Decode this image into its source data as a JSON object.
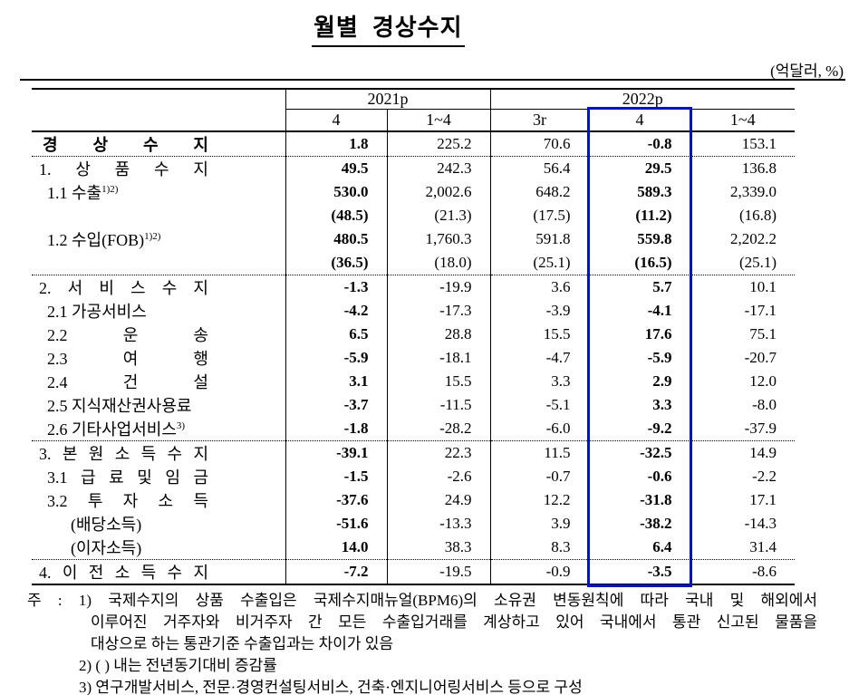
{
  "title": "월별  경상수지",
  "unit_note": "(억달러, %)",
  "accent_color": "#0010e0",
  "table": {
    "group_headers": [
      {
        "label": "2021p",
        "span": 2
      },
      {
        "label": "2022p",
        "span": 3
      }
    ],
    "sub_headers": [
      "4",
      "1~4",
      "3r",
      "4",
      "1~4"
    ],
    "highlighted_subcolumn_index": 3,
    "bold_value_columns": [
      0,
      3
    ],
    "rows": [
      {
        "label": "경 상 수 지",
        "level": 0,
        "bold": true,
        "spread": true,
        "values": [
          "1.8",
          "225.2",
          "70.6",
          "-0.8",
          "153.1"
        ],
        "section_end": true
      },
      {
        "label": "1. 상 품 수 지",
        "level": 1,
        "spread": true,
        "values": [
          "49.5",
          "242.3",
          "56.4",
          "29.5",
          "136.8"
        ]
      },
      {
        "label": "1.1 수출",
        "sup": "1)2)",
        "level": 2,
        "values": [
          "530.0",
          "2,002.6",
          "648.2",
          "589.3",
          "2,339.0"
        ]
      },
      {
        "label": "",
        "level": 2,
        "values": [
          "(48.5)",
          "(21.3)",
          "(17.5)",
          "(11.2)",
          "(16.8)"
        ]
      },
      {
        "label": "1.2 수입(FOB)",
        "sup": "1)2)",
        "level": 2,
        "values": [
          "480.5",
          "1,760.3",
          "591.8",
          "559.8",
          "2,202.2"
        ]
      },
      {
        "label": "",
        "level": 2,
        "values": [
          "(36.5)",
          "(18.0)",
          "(25.1)",
          "(16.5)",
          "(25.1)"
        ],
        "section_end": true
      },
      {
        "label": "2. 서 비 스 수 지",
        "level": 1,
        "spread": true,
        "values": [
          "-1.3",
          "-19.9",
          "3.6",
          "5.7",
          "10.1"
        ]
      },
      {
        "label": "2.1 가공서비스",
        "level": 2,
        "values": [
          "-4.2",
          "-17.3",
          "-3.9",
          "-4.1",
          "-17.1"
        ]
      },
      {
        "label": "2.2 운 송",
        "level": 2,
        "spread": true,
        "values": [
          "6.5",
          "28.8",
          "15.5",
          "17.6",
          "75.1"
        ]
      },
      {
        "label": "2.3 여 행",
        "level": 2,
        "spread": true,
        "values": [
          "-5.9",
          "-18.1",
          "-4.7",
          "-5.9",
          "-20.7"
        ]
      },
      {
        "label": "2.4 건 설",
        "level": 2,
        "spread": true,
        "values": [
          "3.1",
          "15.5",
          "3.3",
          "2.9",
          "12.0"
        ]
      },
      {
        "label": "2.5 지식재산권사용료",
        "level": 2,
        "values": [
          "-3.7",
          "-11.5",
          "-5.1",
          "3.3",
          "-8.0"
        ]
      },
      {
        "label": "2.6 기타사업서비스",
        "sup": "3)",
        "level": 2,
        "values": [
          "-1.8",
          "-28.2",
          "-6.0",
          "-9.2",
          "-37.9"
        ],
        "section_end": true
      },
      {
        "label": "3. 본 원 소 득 수 지",
        "level": 1,
        "spread": true,
        "values": [
          "-39.1",
          "22.3",
          "11.5",
          "-32.5",
          "14.9"
        ]
      },
      {
        "label": "3.1 급 료 및 임 금",
        "level": 2,
        "spread": true,
        "values": [
          "-1.5",
          "-2.6",
          "-0.7",
          "-0.6",
          "-2.2"
        ]
      },
      {
        "label": "3.2 투 자 소 득",
        "level": 2,
        "spread": true,
        "values": [
          "-37.6",
          "24.9",
          "12.2",
          "-31.8",
          "17.1"
        ]
      },
      {
        "label": "(배당소득)",
        "level": 3,
        "values": [
          "-51.6",
          "-13.3",
          "3.9",
          "-38.2",
          "-14.3"
        ]
      },
      {
        "label": "(이자소득)",
        "level": 3,
        "values": [
          "14.0",
          "38.3",
          "8.3",
          "6.4",
          "31.4"
        ],
        "section_end": true
      },
      {
        "label": "4. 이 전 소 득 수 지",
        "level": 1,
        "spread": true,
        "values": [
          "-7.2",
          "-19.5",
          "-0.9",
          "-3.5",
          "-8.6"
        ]
      }
    ]
  },
  "footnotes": {
    "line1": "주 : 1) 국제수지의 상품 수출입은 국제수지매뉴얼(BPM6)의 소유권 변동원칙에 따라 국내 및 해외에서",
    "line2": "이루어진 거주자와 비거주자 간 모든 수출입거래를 계상하고 있어 국내에서 통관 신고된 물품을",
    "line3": "대상으로 하는 통관기준 수출입과는 차이가 있음",
    "line4": "2) ( ) 내는 전년동기대비 증감률",
    "line5": "3) 연구개발서비스, 전문·경영컨설팅서비스, 건축·엔지니어링서비스 등으로 구성"
  }
}
